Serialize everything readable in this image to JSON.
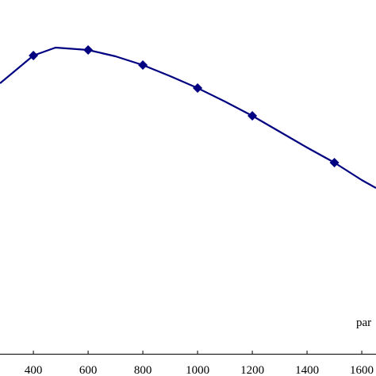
{
  "chart_data": {
    "type": "line",
    "x_label": "par",
    "x": [
      278,
      400,
      481,
      600,
      700,
      800,
      900,
      1000,
      1100,
      1200,
      1300,
      1400,
      1500,
      1600,
      1652
    ],
    "series": [
      {
        "color": "#000080",
        "values": [
          342,
          377,
          387,
          384,
          376,
          365,
          351,
          336,
          319,
          301,
          281,
          261,
          242,
          220,
          210
        ],
        "markers": [
          false,
          true,
          false,
          true,
          false,
          true,
          false,
          true,
          false,
          true,
          false,
          false,
          true,
          false,
          false
        ]
      }
    ],
    "xlim": [
      278,
      1652
    ],
    "xticks": [
      400,
      600,
      800,
      1000,
      1200,
      1400,
      1600
    ],
    "ylim": [
      0,
      447
    ]
  }
}
